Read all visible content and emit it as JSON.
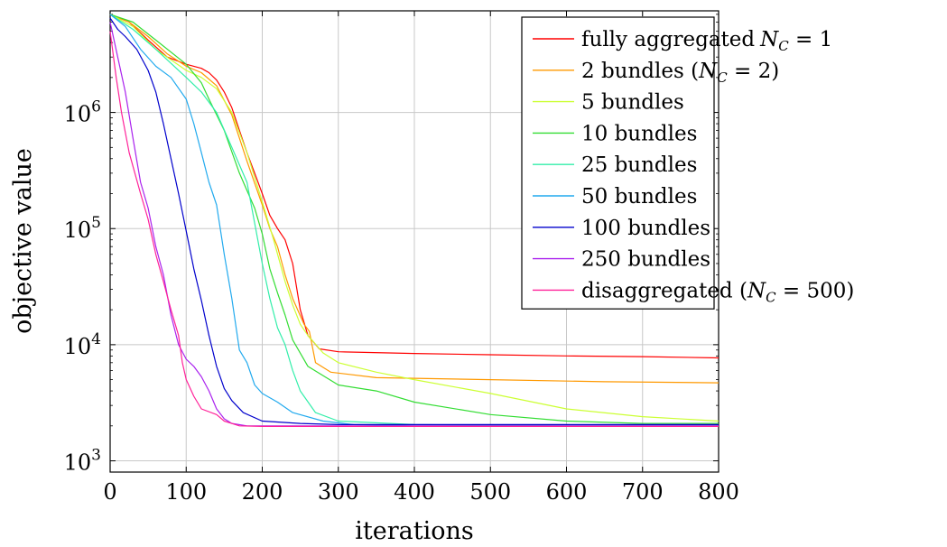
{
  "chart_data": {
    "type": "line",
    "title": "",
    "xlabel": "iterations",
    "ylabel": "objective value",
    "xlim": [
      0,
      800
    ],
    "ylim": [
      800,
      7500000
    ],
    "yscale": "log",
    "grid": true,
    "legend": "top-right",
    "x_ticks": [
      0,
      100,
      200,
      300,
      400,
      500,
      600,
      700,
      800
    ],
    "y_ticks": [
      {
        "value": 1000,
        "base": "10",
        "exp": "3"
      },
      {
        "value": 10000,
        "base": "10",
        "exp": "4"
      },
      {
        "value": 100000,
        "base": "10",
        "exp": "5"
      },
      {
        "value": 1000000,
        "base": "10",
        "exp": "6"
      }
    ],
    "series": [
      {
        "name": "fully aggregated",
        "name_math": "N",
        "name_sub": "C",
        "name_tail": " = 1",
        "color": "#ff0000",
        "points": [
          [
            0,
            7000000
          ],
          [
            25,
            6000000
          ],
          [
            50,
            4200000
          ],
          [
            75,
            3000000
          ],
          [
            100,
            2600000
          ],
          [
            120,
            2400000
          ],
          [
            130,
            2200000
          ],
          [
            140,
            1900000
          ],
          [
            150,
            1500000
          ],
          [
            160,
            1100000
          ],
          [
            170,
            700000
          ],
          [
            180,
            450000
          ],
          [
            190,
            300000
          ],
          [
            200,
            200000
          ],
          [
            210,
            130000
          ],
          [
            220,
            100000
          ],
          [
            230,
            80000
          ],
          [
            240,
            50000
          ],
          [
            250,
            20000
          ],
          [
            260,
            12000
          ],
          [
            275,
            9200
          ],
          [
            300,
            8700
          ],
          [
            400,
            8400
          ],
          [
            500,
            8200
          ],
          [
            600,
            8000
          ],
          [
            700,
            7900
          ],
          [
            800,
            7700
          ]
        ]
      },
      {
        "name": "2 bundles (",
        "name_math": "N",
        "name_sub": "C",
        "name_tail": " = 2)",
        "color": "#ff9900",
        "points": [
          [
            0,
            7000000
          ],
          [
            25,
            6000000
          ],
          [
            50,
            4500000
          ],
          [
            75,
            3200000
          ],
          [
            100,
            2500000
          ],
          [
            120,
            2200000
          ],
          [
            140,
            1700000
          ],
          [
            160,
            950000
          ],
          [
            180,
            380000
          ],
          [
            200,
            160000
          ],
          [
            210,
            100000
          ],
          [
            220,
            70000
          ],
          [
            230,
            40000
          ],
          [
            240,
            25000
          ],
          [
            255,
            15000
          ],
          [
            262,
            13000
          ],
          [
            270,
            7000
          ],
          [
            290,
            5800
          ],
          [
            350,
            5200
          ],
          [
            500,
            5000
          ],
          [
            650,
            4800
          ],
          [
            800,
            4700
          ]
        ]
      },
      {
        "name": "5 bundles",
        "color": "#ccff33",
        "points": [
          [
            0,
            7000000
          ],
          [
            30,
            5500000
          ],
          [
            60,
            3500000
          ],
          [
            100,
            2300000
          ],
          [
            120,
            2000000
          ],
          [
            140,
            1600000
          ],
          [
            160,
            1000000
          ],
          [
            180,
            450000
          ],
          [
            200,
            170000
          ],
          [
            215,
            80000
          ],
          [
            230,
            35000
          ],
          [
            240,
            22000
          ],
          [
            250,
            15000
          ],
          [
            260,
            12000
          ],
          [
            280,
            8500
          ],
          [
            300,
            7000
          ],
          [
            350,
            5800
          ],
          [
            400,
            5000
          ],
          [
            500,
            3800
          ],
          [
            600,
            2800
          ],
          [
            700,
            2400
          ],
          [
            800,
            2200
          ]
        ]
      },
      {
        "name": "10 bundles",
        "color": "#33dd33",
        "points": [
          [
            0,
            7000000
          ],
          [
            30,
            6000000
          ],
          [
            60,
            4200000
          ],
          [
            100,
            2600000
          ],
          [
            120,
            1800000
          ],
          [
            130,
            1300000
          ],
          [
            150,
            700000
          ],
          [
            170,
            300000
          ],
          [
            190,
            150000
          ],
          [
            200,
            90000
          ],
          [
            210,
            45000
          ],
          [
            220,
            28000
          ],
          [
            230,
            18000
          ],
          [
            240,
            11000
          ],
          [
            260,
            6500
          ],
          [
            300,
            4500
          ],
          [
            350,
            4000
          ],
          [
            400,
            3200
          ],
          [
            500,
            2500
          ],
          [
            600,
            2200
          ],
          [
            700,
            2100
          ],
          [
            800,
            2100
          ]
        ]
      },
      {
        "name": "25 bundles",
        "color": "#33eeaa",
        "points": [
          [
            0,
            7000000
          ],
          [
            30,
            5200000
          ],
          [
            60,
            3500000
          ],
          [
            100,
            2000000
          ],
          [
            120,
            1500000
          ],
          [
            140,
            1000000
          ],
          [
            160,
            500000
          ],
          [
            180,
            250000
          ],
          [
            200,
            50000
          ],
          [
            210,
            25000
          ],
          [
            220,
            14000
          ],
          [
            230,
            10000
          ],
          [
            240,
            6000
          ],
          [
            250,
            4000
          ],
          [
            270,
            2600
          ],
          [
            300,
            2200
          ],
          [
            400,
            2050
          ],
          [
            600,
            2000
          ],
          [
            800,
            2000
          ]
        ]
      },
      {
        "name": "50 bundles",
        "color": "#22aaee",
        "points": [
          [
            0,
            7000000
          ],
          [
            20,
            5500000
          ],
          [
            40,
            3500000
          ],
          [
            60,
            2500000
          ],
          [
            80,
            2000000
          ],
          [
            100,
            1300000
          ],
          [
            110,
            800000
          ],
          [
            120,
            450000
          ],
          [
            130,
            250000
          ],
          [
            140,
            160000
          ],
          [
            150,
            60000
          ],
          [
            160,
            25000
          ],
          [
            170,
            9000
          ],
          [
            180,
            7000
          ],
          [
            190,
            4500
          ],
          [
            200,
            3800
          ],
          [
            220,
            3200
          ],
          [
            240,
            2600
          ],
          [
            280,
            2200
          ],
          [
            320,
            2050
          ],
          [
            400,
            2000
          ],
          [
            800,
            2000
          ]
        ]
      },
      {
        "name": "100 bundles",
        "color": "#0000cc",
        "points": [
          [
            0,
            6500000
          ],
          [
            10,
            5200000
          ],
          [
            20,
            4500000
          ],
          [
            35,
            3500000
          ],
          [
            50,
            2300000
          ],
          [
            60,
            1500000
          ],
          [
            70,
            800000
          ],
          [
            80,
            400000
          ],
          [
            90,
            200000
          ],
          [
            100,
            95000
          ],
          [
            110,
            45000
          ],
          [
            120,
            24000
          ],
          [
            130,
            12000
          ],
          [
            140,
            6500
          ],
          [
            150,
            4200
          ],
          [
            160,
            3300
          ],
          [
            175,
            2600
          ],
          [
            200,
            2200
          ],
          [
            250,
            2100
          ],
          [
            300,
            2050
          ],
          [
            400,
            2050
          ],
          [
            800,
            2050
          ]
        ]
      },
      {
        "name": "250 bundles",
        "color": "#aa22ee",
        "points": [
          [
            0,
            6000000
          ],
          [
            10,
            3000000
          ],
          [
            20,
            1500000
          ],
          [
            30,
            600000
          ],
          [
            40,
            250000
          ],
          [
            50,
            150000
          ],
          [
            60,
            70000
          ],
          [
            70,
            40000
          ],
          [
            80,
            18000
          ],
          [
            90,
            10000
          ],
          [
            100,
            7500
          ],
          [
            110,
            6500
          ],
          [
            120,
            5300
          ],
          [
            130,
            4000
          ],
          [
            140,
            2800
          ],
          [
            150,
            2300
          ],
          [
            160,
            2100
          ],
          [
            180,
            2000
          ],
          [
            800,
            2000
          ]
        ]
      },
      {
        "name": "disaggregated (",
        "name_math": "N",
        "name_sub": "C",
        "name_tail": " = 500)",
        "color": "#ff2299",
        "points": [
          [
            0,
            5000000
          ],
          [
            8,
            2000000
          ],
          [
            15,
            1000000
          ],
          [
            25,
            450000
          ],
          [
            40,
            200000
          ],
          [
            50,
            120000
          ],
          [
            60,
            60000
          ],
          [
            70,
            35000
          ],
          [
            80,
            20000
          ],
          [
            90,
            12000
          ],
          [
            95,
            7000
          ],
          [
            100,
            5000
          ],
          [
            110,
            3600
          ],
          [
            120,
            2800
          ],
          [
            140,
            2500
          ],
          [
            150,
            2200
          ],
          [
            170,
            2000
          ],
          [
            200,
            1980
          ],
          [
            800,
            1980
          ]
        ]
      }
    ]
  }
}
